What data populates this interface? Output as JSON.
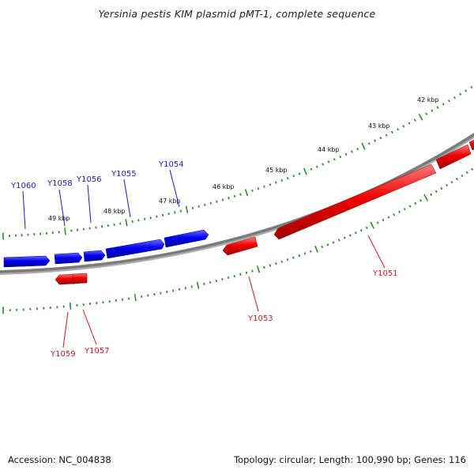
{
  "title": "Yersinia pestis KIM plasmid pMT-1, complete sequence",
  "colors": {
    "forward_gene": "#0000ee",
    "reverse_gene": "#ee0000",
    "backbone": "#888888",
    "tick": "#2e8b2e",
    "forward_label": "#1a1acc",
    "reverse_label": "#cc1a1a"
  },
  "ruler": {
    "unit": "kbp",
    "ticks": [
      {
        "label": "42 kbp"
      },
      {
        "label": "43 kbp"
      },
      {
        "label": "44 kbp"
      },
      {
        "label": "45 kbp"
      },
      {
        "label": "46 kbp"
      },
      {
        "label": "47 kbp"
      },
      {
        "label": "48 kbp"
      },
      {
        "label": "49 kbp"
      }
    ]
  },
  "genes": {
    "forward": [
      {
        "name": "Y1060"
      },
      {
        "name": "Y1058"
      },
      {
        "name": "Y1056"
      },
      {
        "name": "Y1055"
      },
      {
        "name": "Y1054"
      }
    ],
    "reverse": [
      {
        "name": "Y1051"
      },
      {
        "name": "Y1053"
      },
      {
        "name": "Y1059"
      },
      {
        "name": "Y1057"
      }
    ]
  },
  "footer": {
    "accession": "Accession: NC_004838",
    "summary": "Topology: circular; Length: 100,990 bp; Genes: 116"
  }
}
